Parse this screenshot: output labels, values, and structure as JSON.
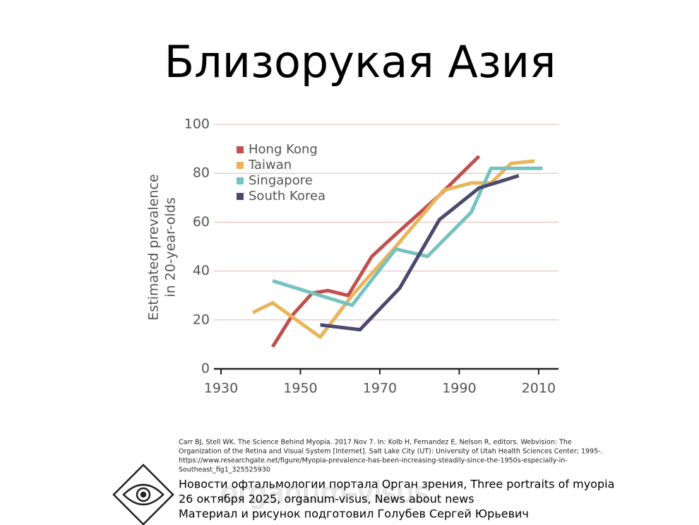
{
  "title": "Близорукая Азия",
  "chart_data": {
    "type": "line",
    "y_label_lines": [
      "Estimated prevalence",
      "in 20-year-olds"
    ],
    "xlim": [
      1930,
      2015
    ],
    "xticks": [
      1930,
      1950,
      1970,
      1990,
      2010
    ],
    "ylim": [
      0,
      100
    ],
    "yticks": [
      0,
      20,
      40,
      60,
      80,
      100
    ],
    "grid": true,
    "legend": "upper-left",
    "series": [
      {
        "name": "Hong Kong",
        "color": "#c0504d",
        "x": [
          1943,
          1948,
          1953,
          1957,
          1962,
          1968,
          1974,
          1985,
          1995
        ],
        "values": [
          9,
          22,
          31,
          32,
          30,
          46,
          55,
          71,
          87
        ]
      },
      {
        "name": "Taiwan",
        "color": "#e9b45a",
        "x": [
          1938,
          1943,
          1955,
          1963,
          1974,
          1986,
          1993,
          1998,
          2003,
          2009
        ],
        "values": [
          23,
          27,
          13,
          30,
          50,
          73,
          76,
          76,
          84,
          85
        ]
      },
      {
        "name": "Singapore",
        "color": "#74c3c0",
        "x": [
          1943,
          1963,
          1974,
          1982,
          1993,
          1998,
          2011
        ],
        "values": [
          36,
          26,
          49,
          46,
          64,
          82,
          82
        ]
      },
      {
        "name": "South Korea",
        "color": "#4b4a6e",
        "x": [
          1955,
          1965,
          1975,
          1985,
          1995,
          2005
        ],
        "values": [
          18,
          16,
          33,
          61,
          74,
          79
        ]
      }
    ]
  },
  "citation": [
    "Carr BJ, Stell WK. The Science Behind Myopia. 2017 Nov 7. In: Kolb H, Fernandez E, Nelson R, editors. Webvision: The",
    "Organization of the Retina and Visual System [Internet]. Salt Lake City (UT): University of Utah Health Sciences Center; 1995-.",
    "https://www.researchgate.net/figure/Myopia-prevalence-has-been-increasing-steadily-since-the-1950s-especially-in-",
    "Southeast_fig1_325525930"
  ],
  "watermark": "organum-visus",
  "footer": [
    "Новости офтальмологии портала Орган зрения, Three portraits of myopia",
    "26 октября 2025, organum-visus, News about news",
    "Материал и рисунок подготовил Голубев Сергей Юрьевич"
  ]
}
